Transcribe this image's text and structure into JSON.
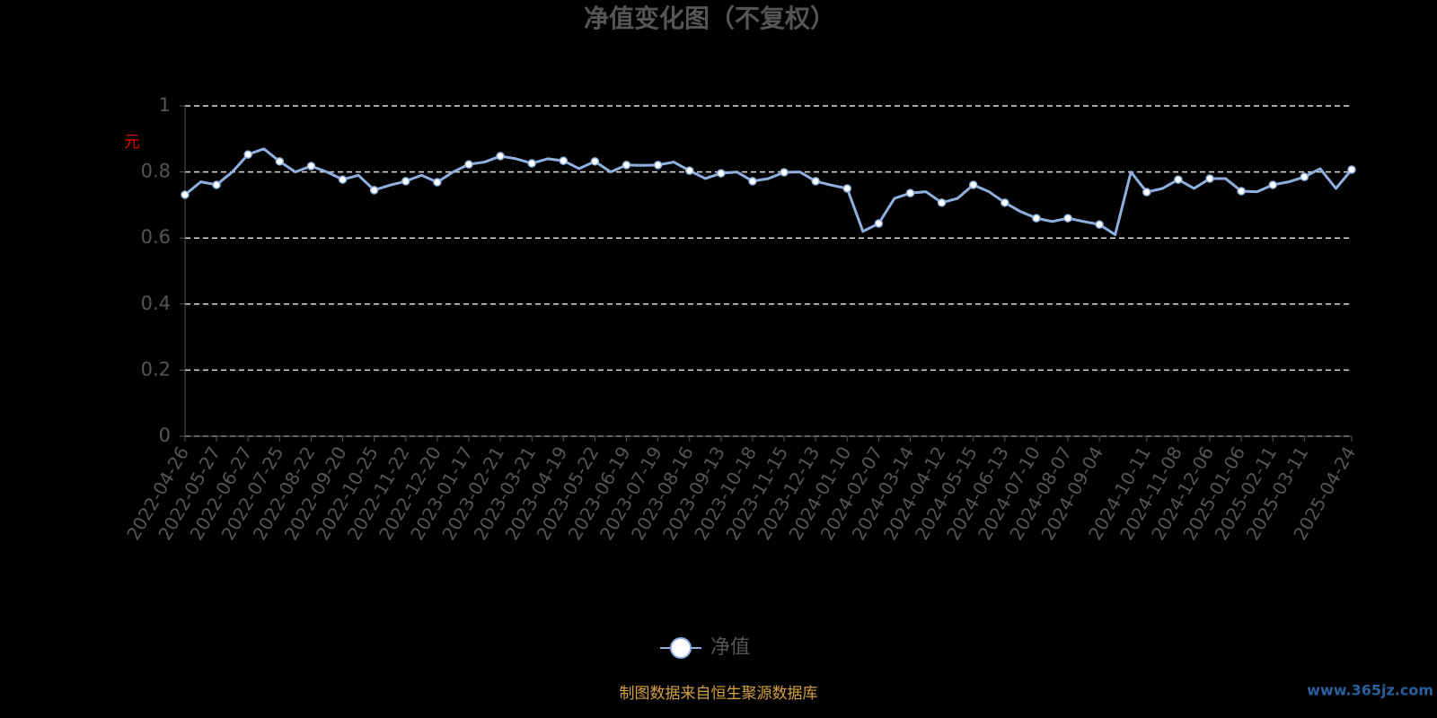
{
  "chart_data": {
    "type": "line",
    "title": "净值变化图（不复权）",
    "y_label": "元",
    "categories": [
      "2022-04-26",
      null,
      "2022-05-27",
      null,
      "2022-06-27",
      null,
      "2022-07-25",
      null,
      "2022-08-22",
      null,
      "2022-09-20",
      null,
      "2022-10-25",
      null,
      "2022-11-22",
      null,
      "2022-12-20",
      null,
      "2023-01-17",
      null,
      "2023-02-21",
      null,
      "2023-03-21",
      null,
      "2023-04-19",
      null,
      "2023-05-22",
      null,
      "2023-06-19",
      null,
      "2023-07-19",
      null,
      "2023-08-16",
      null,
      "2023-09-13",
      null,
      "2023-10-18",
      null,
      "2023-11-15",
      null,
      "2023-12-13",
      null,
      "2024-01-10",
      null,
      "2024-02-07",
      null,
      "2024-03-14",
      null,
      "2024-04-12",
      null,
      "2024-05-15",
      null,
      "2024-06-13",
      null,
      "2024-07-10",
      null,
      "2024-08-07",
      null,
      "2024-09-04",
      null,
      null,
      "2024-10-11",
      null,
      "2024-11-08",
      null,
      "2024-12-06",
      null,
      "2025-01-06",
      null,
      "2025-02-11",
      null,
      "2025-03-11",
      null,
      null,
      "2025-04-24"
    ],
    "series": [
      {
        "name": "净值",
        "color": "#8fb0de",
        "values": [
          0.731,
          0.77,
          0.761,
          0.8,
          0.853,
          0.87,
          0.832,
          0.8,
          0.818,
          0.8,
          0.777,
          0.79,
          0.745,
          0.76,
          0.772,
          0.79,
          0.769,
          0.8,
          0.823,
          0.83,
          0.848,
          0.84,
          0.826,
          0.84,
          0.834,
          0.81,
          0.832,
          0.8,
          0.821,
          0.82,
          0.821,
          0.83,
          0.804,
          0.78,
          0.796,
          0.8,
          0.772,
          0.78,
          0.799,
          0.8,
          0.772,
          0.76,
          0.75,
          0.62,
          0.644,
          0.72,
          0.736,
          0.74,
          0.707,
          0.72,
          0.761,
          0.74,
          0.707,
          0.68,
          0.66,
          0.65,
          0.66,
          0.65,
          0.641,
          0.61,
          0.8,
          0.739,
          0.75,
          0.777,
          0.75,
          0.78,
          0.78,
          0.742,
          0.74,
          0.761,
          0.77,
          0.785,
          0.81,
          0.75,
          0.807
        ]
      }
    ],
    "ylim": [
      0,
      1
    ],
    "yticks": [
      0,
      0.2,
      0.4,
      0.6,
      0.8,
      1
    ],
    "grid": true,
    "source": "制图数据来自恒生聚源数据库",
    "watermark": "www.365jz.com"
  }
}
